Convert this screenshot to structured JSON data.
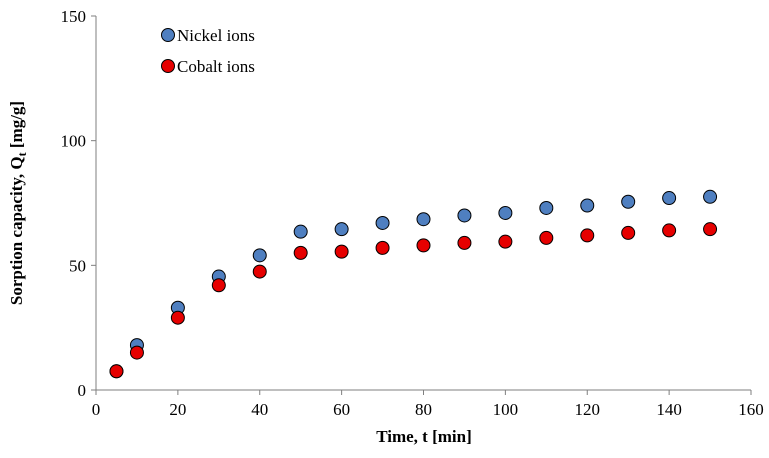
{
  "chart_data": {
    "type": "scatter",
    "xlabel": "Time, t [min]",
    "ylabel": {
      "text": "Sorption capacity, Q",
      "subscript": "t",
      "suffix": " [mg/g]"
    },
    "x": [
      5,
      10,
      20,
      30,
      40,
      50,
      60,
      70,
      80,
      90,
      100,
      110,
      120,
      130,
      140,
      150
    ],
    "series": [
      {
        "name": "Nickel ions",
        "color": "#4f7fc0",
        "values": [
          7.5,
          18,
          33,
          45.5,
          54,
          63.5,
          64.5,
          67,
          68.5,
          70,
          71,
          73,
          74,
          75.5,
          77,
          77.5
        ]
      },
      {
        "name": "Cobalt ions",
        "color": "#e60000",
        "values": [
          7.5,
          15,
          29,
          42,
          47.5,
          55,
          55.5,
          57,
          58,
          59,
          59.5,
          61,
          62,
          63,
          64,
          64.5
        ]
      }
    ],
    "xlim": [
      0,
      160
    ],
    "xticks": [
      0,
      20,
      40,
      60,
      80,
      100,
      120,
      140,
      160
    ],
    "ylim": [
      0,
      150
    ],
    "yticks": [
      0,
      50,
      100,
      150
    ],
    "grid": false,
    "legend": "upper-left"
  }
}
